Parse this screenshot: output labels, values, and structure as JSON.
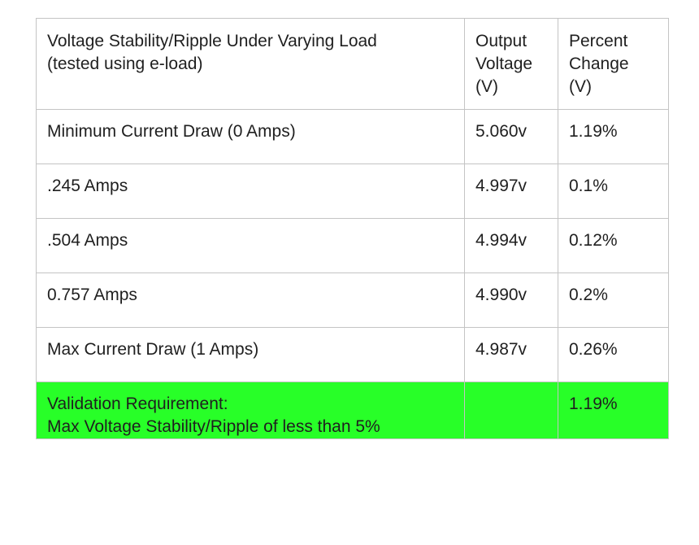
{
  "table": {
    "headers": [
      "Voltage Stability/Ripple Under Varying Load\n(tested using e-load)",
      "Output\nVoltage\n(V)",
      "Percent\nChange\n(V)"
    ],
    "rows": [
      [
        "Minimum Current Draw (0 Amps)",
        "5.060v",
        "1.19%"
      ],
      [
        ".245 Amps",
        "4.997v",
        "0.1%"
      ],
      [
        ".504 Amps",
        "4.994v",
        "0.12%"
      ],
      [
        "0.757 Amps",
        "4.990v",
        "0.2%"
      ],
      [
        "Max Current Draw (1 Amps)",
        "4.987v",
        "0.26%"
      ]
    ],
    "validation": {
      "label": "Validation Requirement:\nMax Voltage Stability/Ripple of less than 5%",
      "output": "",
      "percent": "1.19%",
      "highlight_color": "#28ff28"
    }
  }
}
